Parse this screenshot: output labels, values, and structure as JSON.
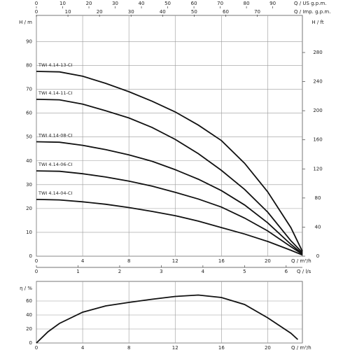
{
  "chart_data": [
    {
      "type": "line",
      "y_label": "H / m",
      "y2_label": "H / ft",
      "x_label": "Q / m³/h",
      "x": [
        0,
        2,
        4,
        6,
        8,
        10,
        12,
        14,
        16,
        18,
        20,
        22,
        23
      ],
      "series": [
        {
          "name": "TWI 4.14-13-CI",
          "color": "#111111",
          "values": [
            77.5,
            77.3,
            75.5,
            72.5,
            69,
            65,
            60.5,
            55,
            48.5,
            39,
            27,
            12,
            2
          ]
        },
        {
          "name": "TWI 4.14-11-CI",
          "color": "#111111",
          "values": [
            65.8,
            65.6,
            63.8,
            61,
            58,
            54,
            49,
            43,
            36,
            28,
            18.5,
            6.5,
            1.5
          ]
        },
        {
          "name": "TWI 4.14-08-CI",
          "color": "#111111",
          "values": [
            48,
            47.8,
            46.5,
            44.7,
            42.5,
            39.8,
            36.3,
            32.3,
            27.5,
            21.5,
            14,
            5,
            1
          ]
        },
        {
          "name": "TWI 4.14-06-CI",
          "color": "#111111",
          "values": [
            35.8,
            35.6,
            34.6,
            33.2,
            31.5,
            29.4,
            26.8,
            24,
            20.6,
            16,
            10.6,
            4,
            0.8
          ]
        },
        {
          "name": "TWI 4.14-04-CI",
          "color": "#111111",
          "values": [
            23.8,
            23.6,
            22.8,
            21.8,
            20.4,
            18.8,
            17,
            14.7,
            12,
            9.3,
            6.2,
            2.5,
            0.5
          ]
        }
      ],
      "xlim": [
        0,
        23
      ],
      "xticks": [
        0,
        4,
        8,
        12,
        16,
        20
      ],
      "ylim": [
        0,
        101
      ],
      "yticks": [
        0,
        10,
        20,
        30,
        40,
        50,
        60,
        70,
        80,
        90
      ],
      "y2lim": [
        0,
        331
      ],
      "y2ticks": [
        0,
        40,
        80,
        120,
        160,
        200,
        240,
        280
      ],
      "grid": true,
      "top_axes": [
        {
          "label": "Q / US g.p.m.",
          "lim": [
            0,
            101.3
          ],
          "ticks": [
            0,
            10,
            20,
            30,
            40,
            50,
            60,
            70,
            80,
            90
          ]
        },
        {
          "label": "Q / Imp. g.p.m.",
          "lim": [
            0,
            84.3
          ],
          "ticks": [
            0,
            10,
            20,
            30,
            40,
            50,
            60,
            70
          ]
        }
      ],
      "bottom_axis": {
        "label": "Q / l/s",
        "lim": [
          0,
          6.39
        ],
        "ticks": [
          0,
          1,
          2,
          3,
          4,
          5,
          6
        ]
      }
    },
    {
      "type": "line",
      "y_label": "η / %",
      "x_label": "Q / m³/h",
      "x": [
        0,
        1,
        2,
        4,
        6,
        8,
        10,
        12,
        14,
        16,
        18,
        20,
        22,
        22.6
      ],
      "values": [
        0,
        16,
        28,
        44,
        53,
        58,
        62.5,
        66.5,
        68.5,
        65,
        55,
        36,
        14,
        5
      ],
      "color": "#111111",
      "xlim": [
        0,
        23
      ],
      "xticks": [
        0,
        4,
        8,
        12,
        16,
        20
      ],
      "ylim": [
        0,
        88
      ],
      "yticks": [
        0,
        20,
        40,
        60
      ],
      "grid": true
    }
  ]
}
